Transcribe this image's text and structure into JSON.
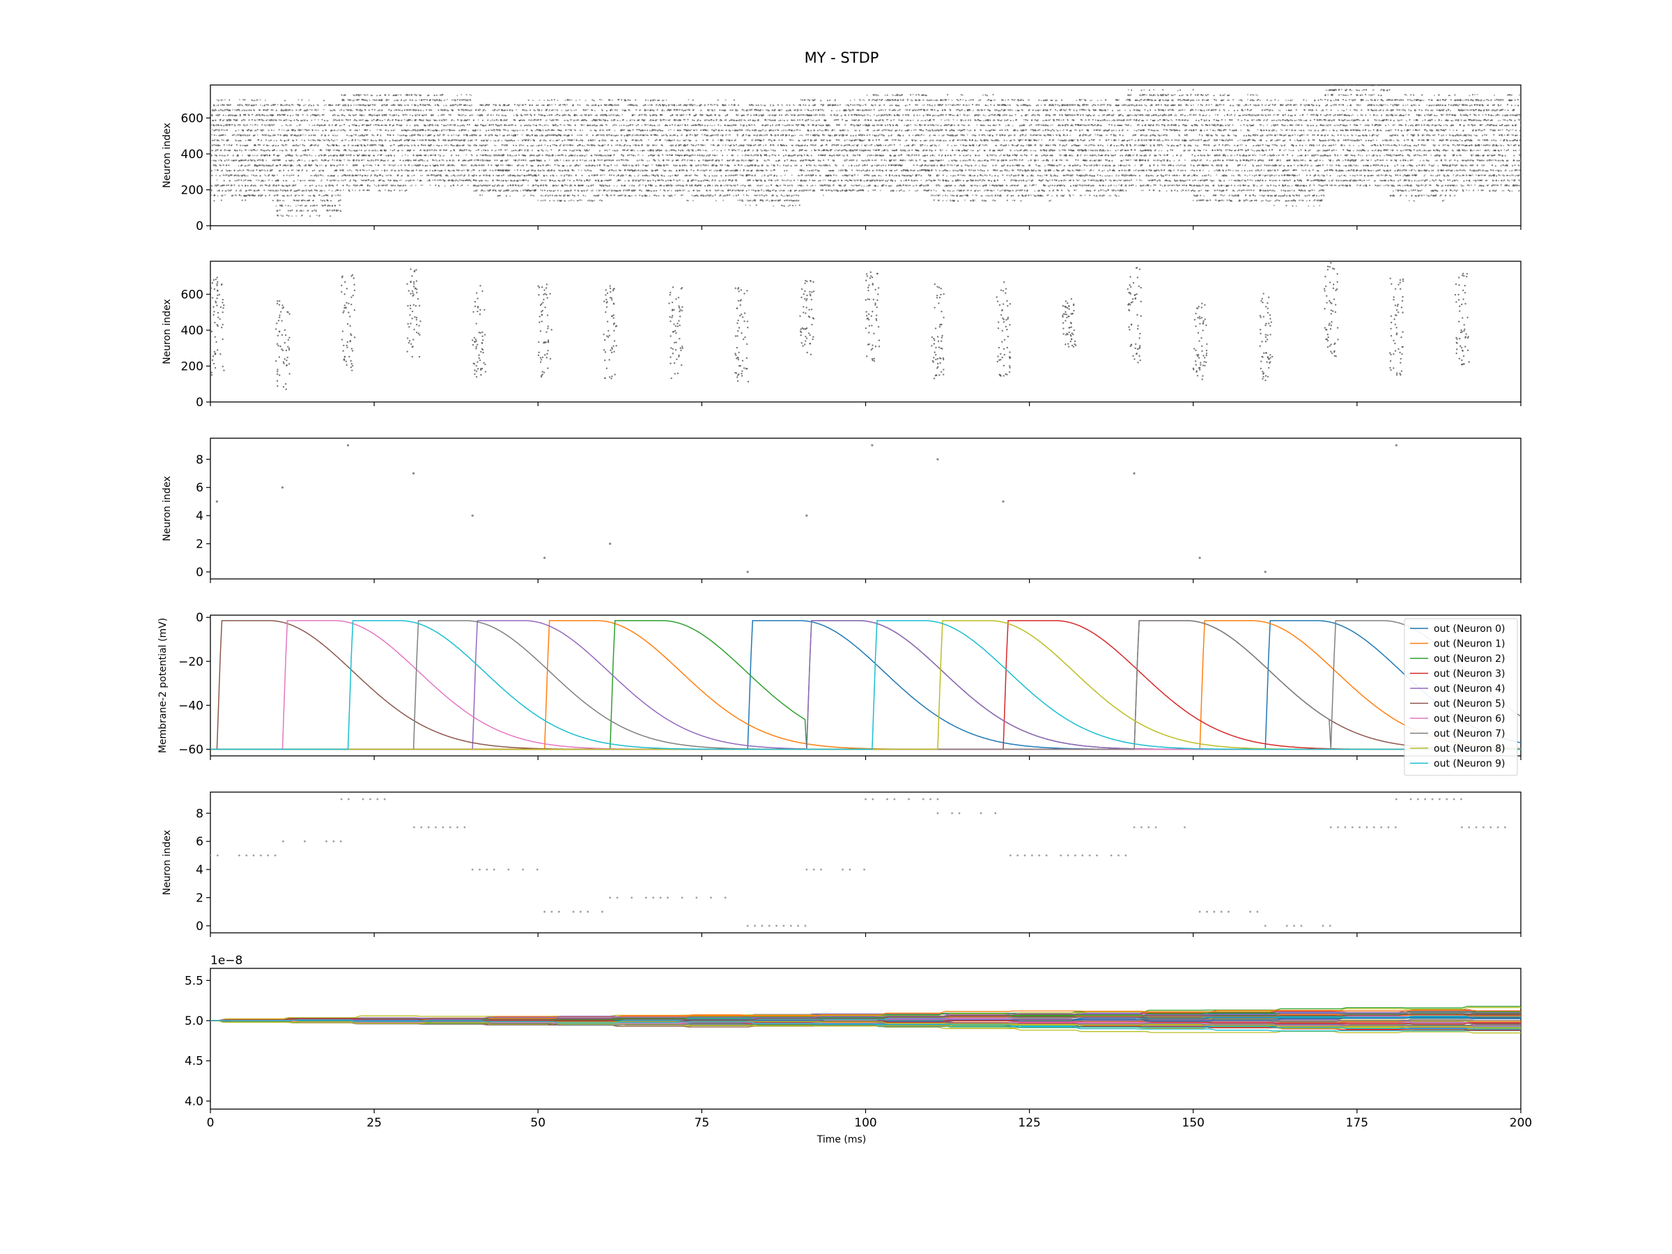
{
  "figure": {
    "title": "MY - STDP",
    "xlabel": "Time (ms)"
  },
  "colors": {
    "tab10": [
      "#1f77b4",
      "#ff7f0e",
      "#2ca02c",
      "#d62728",
      "#9467bd",
      "#8c564b",
      "#e377c2",
      "#7f7f7f",
      "#bcbd22",
      "#17becf"
    ],
    "raster_dense": "#555555",
    "raster_light": "#9a9a9a"
  },
  "chart_data": [
    {
      "type": "scatter",
      "panel": "input-raster",
      "ylabel": "Neuron index",
      "xlim": [
        0,
        200
      ],
      "ylim": [
        0,
        784
      ],
      "xticks": [
        0,
        25,
        50,
        75,
        100,
        125,
        150,
        175,
        200
      ],
      "yticks": [
        0,
        200,
        400,
        600
      ],
      "grid": false,
      "description_of_points": "dense random spike raster; each 10 ms window shows a digit-pattern band of input neurons",
      "windows": [
        {
          "x": [
            0,
            10
          ],
          "y": [
            150,
            700
          ]
        },
        {
          "x": [
            10,
            20
          ],
          "y": [
            60,
            690
          ]
        },
        {
          "x": [
            20,
            30
          ],
          "y": [
            200,
            740
          ]
        },
        {
          "x": [
            30,
            40
          ],
          "y": [
            230,
            730
          ]
        },
        {
          "x": [
            40,
            50
          ],
          "y": [
            170,
            690
          ]
        },
        {
          "x": [
            50,
            60
          ],
          "y": [
            130,
            700
          ]
        },
        {
          "x": [
            60,
            70
          ],
          "y": [
            160,
            700
          ]
        },
        {
          "x": [
            70,
            80
          ],
          "y": [
            150,
            690
          ]
        },
        {
          "x": [
            80,
            90
          ],
          "y": [
            120,
            680
          ]
        },
        {
          "x": [
            90,
            100
          ],
          "y": [
            180,
            700
          ]
        },
        {
          "x": [
            100,
            110
          ],
          "y": [
            190,
            740
          ]
        },
        {
          "x": [
            110,
            120
          ],
          "y": [
            140,
            720
          ]
        },
        {
          "x": [
            120,
            130
          ],
          "y": [
            150,
            700
          ]
        },
        {
          "x": [
            130,
            140
          ],
          "y": [
            170,
            700
          ]
        },
        {
          "x": [
            140,
            150
          ],
          "y": [
            200,
            750
          ]
        },
        {
          "x": [
            150,
            160
          ],
          "y": [
            130,
            730
          ]
        },
        {
          "x": [
            160,
            170
          ],
          "y": [
            120,
            700
          ]
        },
        {
          "x": [
            170,
            180
          ],
          "y": [
            210,
            780
          ]
        },
        {
          "x": [
            180,
            190
          ],
          "y": [
            150,
            720
          ]
        },
        {
          "x": [
            190,
            200
          ],
          "y": [
            200,
            720
          ]
        }
      ]
    },
    {
      "type": "scatter",
      "panel": "input-raster-sparse",
      "ylabel": "Neuron index",
      "xlim": [
        0,
        200
      ],
      "ylim": [
        0,
        784
      ],
      "xticks": [
        0,
        25,
        50,
        75,
        100,
        125,
        150,
        175,
        200
      ],
      "yticks": [
        0,
        200,
        400,
        600
      ],
      "grid": false,
      "windows": [
        {
          "x": [
            0,
            3
          ],
          "y": [
            150,
            700
          ]
        },
        {
          "x": [
            10,
            13
          ],
          "y": [
            60,
            570
          ]
        },
        {
          "x": [
            20,
            23
          ],
          "y": [
            170,
            730
          ]
        },
        {
          "x": [
            30,
            33
          ],
          "y": [
            230,
            740
          ]
        },
        {
          "x": [
            40,
            43
          ],
          "y": [
            130,
            660
          ]
        },
        {
          "x": [
            50,
            53
          ],
          "y": [
            120,
            660
          ]
        },
        {
          "x": [
            60,
            63
          ],
          "y": [
            130,
            650
          ]
        },
        {
          "x": [
            70,
            73
          ],
          "y": [
            130,
            640
          ]
        },
        {
          "x": [
            80,
            83
          ],
          "y": [
            110,
            660
          ]
        },
        {
          "x": [
            90,
            93
          ],
          "y": [
            260,
            690
          ]
        },
        {
          "x": [
            100,
            103
          ],
          "y": [
            200,
            730
          ]
        },
        {
          "x": [
            110,
            113
          ],
          "y": [
            120,
            670
          ]
        },
        {
          "x": [
            120,
            123
          ],
          "y": [
            140,
            690
          ]
        },
        {
          "x": [
            130,
            133
          ],
          "y": [
            300,
            580
          ]
        },
        {
          "x": [
            140,
            143
          ],
          "y": [
            220,
            750
          ]
        },
        {
          "x": [
            150,
            153
          ],
          "y": [
            120,
            560
          ]
        },
        {
          "x": [
            160,
            163
          ],
          "y": [
            110,
            630
          ]
        },
        {
          "x": [
            170,
            173
          ],
          "y": [
            240,
            780
          ]
        },
        {
          "x": [
            180,
            183
          ],
          "y": [
            150,
            700
          ]
        },
        {
          "x": [
            190,
            193
          ],
          "y": [
            180,
            720
          ]
        }
      ]
    },
    {
      "type": "scatter",
      "panel": "output-spikes",
      "ylabel": "Neuron index",
      "xlim": [
        0,
        200
      ],
      "ylim": [
        -0.5,
        9.5
      ],
      "xticks": [
        0,
        25,
        50,
        75,
        100,
        125,
        150,
        175,
        200
      ],
      "yticks": [
        0,
        2,
        4,
        6,
        8
      ],
      "grid": false,
      "points": {
        "x": [
          1,
          11,
          21,
          31,
          40,
          51,
          61,
          82,
          91,
          101,
          111,
          121,
          141,
          151,
          161,
          181
        ],
        "y": [
          5,
          6,
          9,
          7,
          4,
          1,
          2,
          0,
          4,
          9,
          8,
          5,
          7,
          1,
          0,
          9
        ]
      }
    },
    {
      "type": "line",
      "panel": "membrane-potential",
      "ylabel": "Membrane-2 potential (mV)",
      "xlim": [
        0,
        200
      ],
      "ylim": [
        -63,
        1
      ],
      "xticks": [
        0,
        25,
        50,
        75,
        100,
        125,
        150,
        175,
        200
      ],
      "yticks": [
        0,
        -20,
        -40,
        -60
      ],
      "grid": false,
      "legend": "upper-right",
      "rest": -60,
      "peak": -1.5,
      "series": [
        {
          "name": "out (Neuron 0)",
          "rises": [
            82,
            161
          ]
        },
        {
          "name": "out (Neuron 1)",
          "rises": [
            51,
            151
          ]
        },
        {
          "name": "out (Neuron 2)",
          "rises": [
            61,
            91
          ]
        },
        {
          "name": "out (Neuron 3)",
          "rises": [
            121
          ]
        },
        {
          "name": "out (Neuron 4)",
          "rises": [
            40,
            91
          ]
        },
        {
          "name": "out (Neuron 5)",
          "rises": [
            1,
            141
          ]
        },
        {
          "name": "out (Neuron 6)",
          "rises": [
            11
          ]
        },
        {
          "name": "out (Neuron 7)",
          "rises": [
            31,
            141,
            171
          ]
        },
        {
          "name": "out (Neuron 8)",
          "rises": [
            111
          ]
        },
        {
          "name": "out (Neuron 9)",
          "rises": [
            21,
            101
          ]
        }
      ]
    },
    {
      "type": "scatter",
      "panel": "output-spikes-traces",
      "ylabel": "Neuron index",
      "xlim": [
        0,
        200
      ],
      "ylim": [
        -0.5,
        9.5
      ],
      "xticks": [
        0,
        25,
        50,
        75,
        100,
        125,
        150,
        175,
        200
      ],
      "yticks": [
        0,
        2,
        4,
        6,
        8
      ],
      "grid": false,
      "runs": [
        {
          "y": 5,
          "x": [
            0,
            10
          ]
        },
        {
          "y": 6,
          "x": [
            10,
            20
          ]
        },
        {
          "y": 9,
          "x": [
            20,
            27
          ]
        },
        {
          "y": 7,
          "x": [
            30,
            40
          ]
        },
        {
          "y": 4,
          "x": [
            40,
            50
          ]
        },
        {
          "y": 1,
          "x": [
            51,
            60
          ]
        },
        {
          "y": 2,
          "x": [
            61,
            79
          ]
        },
        {
          "y": 0,
          "x": [
            82,
            91
          ]
        },
        {
          "y": 4,
          "x": [
            91,
            100
          ]
        },
        {
          "y": 9,
          "x": [
            100,
            111
          ]
        },
        {
          "y": 8,
          "x": [
            111,
            120
          ]
        },
        {
          "y": 5,
          "x": [
            121,
            140
          ]
        },
        {
          "y": 7,
          "x": [
            141,
            150
          ]
        },
        {
          "y": 1,
          "x": [
            151,
            160
          ]
        },
        {
          "y": 0,
          "x": [
            161,
            171
          ]
        },
        {
          "y": 7,
          "x": [
            171,
            181
          ]
        },
        {
          "y": 9,
          "x": [
            181,
            191
          ]
        },
        {
          "y": 7,
          "x": [
            191,
            200
          ]
        }
      ]
    },
    {
      "type": "line",
      "panel": "weights",
      "ylabel": "",
      "offset_text": "1e−8",
      "xlim": [
        0,
        200
      ],
      "ylim": [
        3.9,
        5.65
      ],
      "xticks": [
        0,
        25,
        50,
        75,
        100,
        125,
        150,
        175,
        200
      ],
      "xticklabels": [
        "0",
        "25",
        "50",
        "75",
        "100",
        "125",
        "150",
        "175",
        "200"
      ],
      "yticks": [
        4.0,
        4.5,
        5.0,
        5.5
      ],
      "yticklabels": [
        "4.0",
        "4.5",
        "5.0",
        "5.5"
      ],
      "grid": false,
      "initial_value": 5.0,
      "final_range": [
        4.75,
        5.2
      ],
      "n_series": 60
    }
  ]
}
